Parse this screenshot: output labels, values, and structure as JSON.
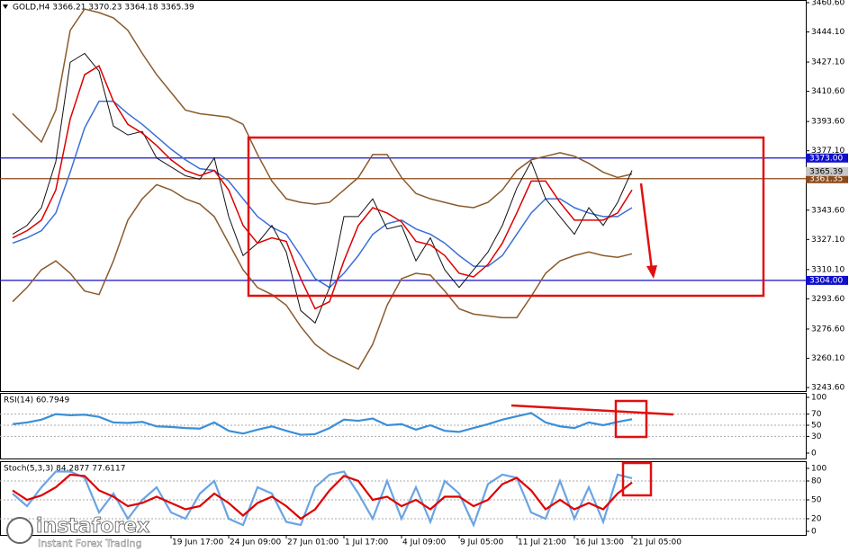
{
  "chart_data": [
    {
      "type": "line",
      "title": "GOLD,H4  3366.21 3370.23 3364.18 3365.39",
      "ylim": [
        3241.6,
        3462.1
      ],
      "yticks": [
        {
          "value": 3460.6,
          "label": "3460.60"
        },
        {
          "value": 3444.1,
          "label": "3444.10"
        },
        {
          "value": 3427.1,
          "label": "3427.10"
        },
        {
          "value": 3410.6,
          "label": "3410.60"
        },
        {
          "value": 3393.6,
          "label": "3393.60"
        },
        {
          "value": 3377.1,
          "label": "3377.10"
        },
        {
          "value": 3343.6,
          "label": "3343.60"
        },
        {
          "value": 3327.1,
          "label": "3327.10"
        },
        {
          "value": 3310.1,
          "label": "3310.10"
        },
        {
          "value": 3293.6,
          "label": "3293.60"
        },
        {
          "value": 3276.6,
          "label": "3276.60"
        },
        {
          "value": 3260.1,
          "label": "3260.10"
        },
        {
          "value": 3243.6,
          "label": "3243.60"
        }
      ],
      "hlines": [
        {
          "value": 3373,
          "label": "3373.00",
          "color": "#1010c8"
        },
        {
          "value": 3304,
          "label": "3304.00",
          "color": "#1010c8"
        },
        {
          "value": 3361.35,
          "label": "3361.35",
          "color": "#8b4a1c"
        }
      ],
      "last": {
        "value": 3365.39,
        "label": "3365.39"
      },
      "series": [
        {
          "color": "#8b5a2b",
          "values": [
            3398,
            3390,
            3382,
            3400,
            3445,
            3457,
            3455,
            3452,
            3445,
            3432,
            3420,
            3410,
            3400,
            3398,
            3397,
            3396,
            3392,
            3375,
            3360,
            3350,
            3348,
            3347,
            3348,
            3355,
            3362,
            3375,
            3375,
            3362,
            3353,
            3350,
            3348,
            3346,
            3345,
            3348,
            3355,
            3366,
            3372,
            3374,
            3376,
            3374,
            3370,
            3365,
            3362,
            3364
          ]
        },
        {
          "color": "#8b5a2b",
          "values": [
            3292,
            3300,
            3310,
            3315,
            3308,
            3298,
            3296,
            3315,
            3338,
            3350,
            3358,
            3355,
            3350,
            3347,
            3340,
            3325,
            3310,
            3300,
            3296,
            3290,
            3278,
            3268,
            3262,
            3258,
            3254,
            3268,
            3290,
            3305,
            3308,
            3307,
            3298,
            3288,
            3285,
            3284,
            3283,
            3283,
            3295,
            3308,
            3315,
            3318,
            3320,
            3318,
            3317,
            3319
          ]
        },
        {
          "color": "#3a6fd8",
          "values": [
            3325,
            3328,
            3332,
            3342,
            3365,
            3390,
            3405,
            3405,
            3398,
            3392,
            3385,
            3378,
            3372,
            3367,
            3366,
            3360,
            3350,
            3340,
            3334,
            3330,
            3318,
            3305,
            3300,
            3308,
            3318,
            3330,
            3336,
            3338,
            3333,
            3330,
            3325,
            3318,
            3312,
            3312,
            3318,
            3330,
            3342,
            3350,
            3350,
            3345,
            3342,
            3340,
            3340,
            3345
          ]
        },
        {
          "color": "#111111",
          "values": [
            3330,
            3335,
            3345,
            3371,
            3427,
            3432,
            3422,
            3391,
            3386,
            3388,
            3373,
            3368,
            3363,
            3361,
            3373,
            3340,
            3318,
            3325,
            3335,
            3320,
            3287,
            3280,
            3300,
            3340,
            3340,
            3350,
            3333,
            3335,
            3315,
            3328,
            3310,
            3300,
            3310,
            3320,
            3335,
            3356,
            3371,
            3350,
            3340,
            3330,
            3345,
            3335,
            3348,
            3366
          ]
        },
        {
          "color": "#dd0000",
          "values": [
            3328,
            3332,
            3338,
            3355,
            3395,
            3420,
            3425,
            3405,
            3392,
            3387,
            3380,
            3372,
            3366,
            3363,
            3366,
            3355,
            3335,
            3325,
            3328,
            3326,
            3305,
            3288,
            3292,
            3315,
            3335,
            3345,
            3342,
            3337,
            3326,
            3324,
            3318,
            3308,
            3306,
            3313,
            3325,
            3342,
            3360,
            3360,
            3348,
            3338,
            3338,
            3338,
            3342,
            3355
          ]
        }
      ]
    },
    {
      "type": "line",
      "title": "RSI(14) 60.7949",
      "ylim": [
        -9.7,
        108.1
      ],
      "yticks": [
        100,
        70,
        50,
        30,
        0
      ],
      "levels": [
        70,
        50,
        30
      ],
      "series": [
        {
          "color": "#3a8fd8",
          "values": [
            52,
            55,
            60,
            70,
            68,
            69,
            65,
            55,
            54,
            56,
            48,
            47,
            45,
            44,
            55,
            40,
            35,
            42,
            48,
            40,
            33,
            34,
            45,
            60,
            58,
            62,
            50,
            52,
            42,
            50,
            40,
            38,
            45,
            52,
            60,
            66,
            72,
            55,
            48,
            45,
            55,
            50,
            56,
            60.7949
          ]
        }
      ]
    },
    {
      "type": "line",
      "title": "Stoch(5,3,3) 84.2877 77.6117",
      "ylim": [
        -5.7,
        111.4
      ],
      "yticks": [
        100,
        80,
        50,
        20,
        0
      ],
      "levels": [
        80,
        50,
        20
      ],
      "categories": [
        null,
        null,
        null,
        null,
        null,
        null,
        null,
        null,
        null,
        null,
        null,
        "19 Jun 17:00",
        null,
        null,
        null,
        "24 Jun 09:00",
        null,
        null,
        null,
        "27 Jun 01:00",
        null,
        null,
        null,
        "1 Jul 17:00",
        null,
        null,
        null,
        "4 Jul 09:00",
        null,
        null,
        null,
        "9 Jul 05:00",
        null,
        null,
        null,
        "11 Jul 21:00",
        null,
        null,
        null,
        "16 Jul 13:00",
        null,
        null,
        null,
        "21 Jul 05:00"
      ],
      "series": [
        {
          "color": "#6aa4e4",
          "values": [
            60,
            40,
            70,
            95,
            95,
            85,
            30,
            60,
            20,
            50,
            70,
            30,
            20,
            60,
            80,
            20,
            10,
            70,
            60,
            15,
            10,
            70,
            90,
            95,
            60,
            20,
            80,
            20,
            70,
            15,
            80,
            60,
            10,
            75,
            90,
            85,
            30,
            20,
            80,
            20,
            70,
            15,
            90,
            84.2877
          ]
        },
        {
          "color": "#dd0000",
          "values": [
            65,
            50,
            57,
            70,
            90,
            88,
            65,
            55,
            40,
            45,
            55,
            45,
            35,
            40,
            60,
            45,
            25,
            45,
            55,
            40,
            20,
            35,
            65,
            88,
            80,
            50,
            55,
            40,
            50,
            35,
            55,
            55,
            40,
            50,
            75,
            85,
            65,
            35,
            50,
            35,
            45,
            35,
            60,
            77.6117
          ]
        }
      ]
    }
  ],
  "logo": {
    "name": "instaforex",
    "tagline": "Instant Forex Trading"
  }
}
